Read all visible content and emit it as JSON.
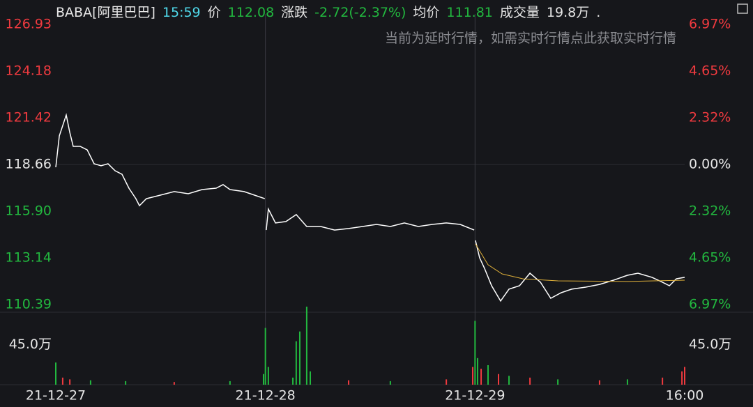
{
  "header": {
    "symbol": "BABA[阿里巴巴]",
    "time": "15:59",
    "price_label": "价",
    "price": "112.08",
    "change_label": "涨跌",
    "change": "-2.72(-2.37%)",
    "avg_label": "均价",
    "avg": "111.81",
    "volume_label": "成交量",
    "volume": "19.8万",
    "more": ".",
    "notice": "当前为延时行情，如需实时行情点此获取实时行情"
  },
  "chart_data": {
    "type": "line",
    "up_color": "#f03a3f",
    "down_color": "#22b83f",
    "flat_color": "#e6e6e6",
    "xlim": [
      0,
      3
    ],
    "xticks": [
      {
        "value": 0,
        "label": "21-12-27"
      },
      {
        "value": 1,
        "label": "21-12-28"
      },
      {
        "value": 2,
        "label": "21-12-29"
      },
      {
        "value": 3,
        "label": "16:00"
      }
    ],
    "ylim": [
      110.39,
      126.93
    ],
    "yticks": [
      126.93,
      124.18,
      121.42,
      118.66,
      {
        "value": 115.9,
        "label": "115.90"
      },
      113.14,
      110.39
    ],
    "y2lim": [
      -6.97,
      6.97
    ],
    "y2ticks": [
      {
        "value": 6.97,
        "label": "6.97%"
      },
      {
        "value": 4.65,
        "label": "4.65%"
      },
      {
        "value": 2.32,
        "label": "2.32%"
      },
      {
        "value": 0,
        "label": "0.00%"
      },
      {
        "value": -2.32,
        "label": "2.32%"
      },
      {
        "value": -4.65,
        "label": "4.65%"
      },
      {
        "value": -6.97,
        "label": "6.97%"
      }
    ],
    "grid": true,
    "series": [
      {
        "color": "#ffffff",
        "x": [
          0,
          0.017,
          0.05,
          0.067,
          0.083,
          0.116,
          0.15,
          0.183,
          0.216,
          0.249,
          0.283,
          0.316,
          0.349,
          0.382,
          0.399,
          0.432,
          0.499,
          0.565,
          0.632,
          0.698,
          0.765,
          0.798,
          0.831,
          0.898,
          0.948,
          0.997,
          1.0,
          1.004,
          1.014,
          1.048,
          1.098,
          1.147,
          1.197,
          1.264,
          1.33,
          1.397,
          1.463,
          1.53,
          1.596,
          1.663,
          1.729,
          1.796,
          1.863,
          1.929,
          1.996,
          2.0,
          2.002,
          2.022,
          2.045,
          2.079,
          2.122,
          2.162,
          2.212,
          2.262,
          2.312,
          2.361,
          2.411,
          2.461,
          2.528,
          2.594,
          2.661,
          2.727,
          2.777,
          2.844,
          2.894,
          2.927,
          2.96,
          3.0
        ],
        "values": [
          118.5,
          120.35,
          121.58,
          120.55,
          119.73,
          119.73,
          119.52,
          118.7,
          118.58,
          118.7,
          118.29,
          118.08,
          117.26,
          116.64,
          116.23,
          116.64,
          116.85,
          117.06,
          116.93,
          117.18,
          117.26,
          117.47,
          117.18,
          117.06,
          116.85,
          116.64,
          null,
          114.79,
          116.03,
          115.21,
          115.29,
          115.7,
          115.0,
          115.0,
          114.79,
          114.88,
          115.0,
          115.12,
          115.0,
          115.21,
          115.0,
          115.12,
          115.21,
          115.12,
          114.79,
          null,
          114.18,
          113.15,
          112.53,
          111.5,
          110.6,
          111.3,
          111.5,
          112.24,
          111.71,
          110.76,
          111.09,
          111.3,
          111.42,
          111.58,
          111.83,
          112.12,
          112.24,
          112.0,
          111.71,
          111.5,
          111.91,
          112.0
        ]
      },
      {
        "color": "#e0b13a",
        "x": [
          2.002,
          2.062,
          2.129,
          2.229,
          2.395,
          2.727,
          3.0
        ],
        "values": [
          113.97,
          112.74,
          112.2,
          111.91,
          111.79,
          111.75,
          111.83
        ]
      }
    ],
    "volume": {
      "ylim": [
        0,
        88
      ],
      "yticks": [
        {
          "value": 45,
          "label": "45.0万"
        }
      ],
      "x": [
        0,
        0.033,
        0.067,
        0.166,
        0.333,
        0.565,
        0.831,
        0.991,
        1.0,
        1.014,
        1.131,
        1.147,
        1.164,
        1.197,
        1.214,
        1.397,
        1.596,
        1.863,
        1.989,
        2.0,
        2.012,
        2.029,
        2.062,
        2.112,
        2.162,
        2.262,
        2.395,
        2.594,
        2.727,
        2.894,
        2.987,
        3.0
      ],
      "values": [
        25,
        8,
        6,
        5,
        4,
        3,
        4,
        12,
        64,
        20,
        8,
        49,
        60,
        88,
        15,
        5,
        4,
        6,
        20,
        72,
        30,
        18,
        22,
        12,
        10,
        8,
        6,
        5,
        6,
        8,
        15,
        20
      ],
      "colors": [
        "#22b83f",
        "#f03a3f",
        "#f03a3f",
        "#22b83f",
        "#22b83f",
        "#f03a3f",
        "#22b83f",
        "#22b83f",
        "#22b83f",
        "#22b83f",
        "#22b83f",
        "#22b83f",
        "#22b83f",
        "#22b83f",
        "#22b83f",
        "#f03a3f",
        "#22b83f",
        "#f03a3f",
        "#f03a3f",
        "#22b83f",
        "#22b83f",
        "#f03a3f",
        "#22b83f",
        "#f03a3f",
        "#22b83f",
        "#f03a3f",
        "#22b83f",
        "#f03a3f",
        "#22b83f",
        "#f03a3f",
        "#f03a3f",
        "#f03a3f"
      ]
    }
  }
}
